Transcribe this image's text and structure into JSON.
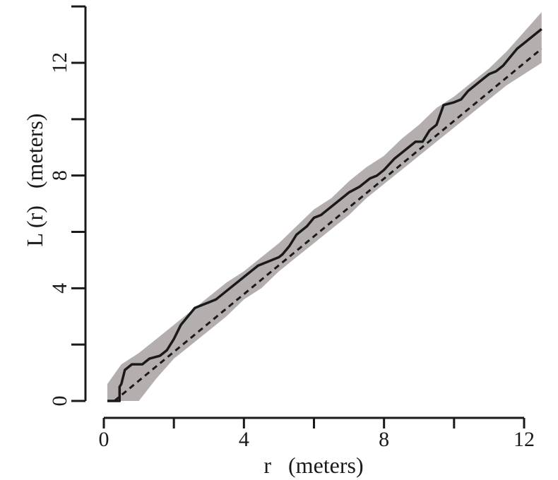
{
  "chart_data": {
    "type": "line",
    "title": "",
    "xlabel": "r   (meters)",
    "ylabel": "L (r)   (meters)",
    "xlim": [
      0,
      12.5
    ],
    "ylim": [
      0,
      14
    ],
    "x_ticks": [
      0,
      2,
      4,
      6,
      8,
      10,
      12
    ],
    "x_tick_labels": [
      "0",
      "",
      "4",
      "",
      "8",
      "",
      "12"
    ],
    "y_ticks": [
      0,
      2,
      4,
      6,
      8,
      10,
      12,
      14
    ],
    "y_tick_labels": [
      "0",
      "",
      "4",
      "",
      "8",
      "",
      "12",
      ""
    ],
    "grid": false,
    "legend": "none",
    "colors": {
      "envelope": "#b4aeae",
      "observed": "#1a1a1a",
      "expected": "#1a1a1a",
      "axis": "#1a1a1a"
    },
    "envelope": {
      "x": [
        0.1,
        0.5,
        1.0,
        1.5,
        2.0,
        2.5,
        3.0,
        3.5,
        4.0,
        4.5,
        5.0,
        5.5,
        6.0,
        6.5,
        7.0,
        7.5,
        8.0,
        8.5,
        9.0,
        9.5,
        10.0,
        10.5,
        11.0,
        11.5,
        12.0,
        12.5
      ],
      "lower": [
        0.0,
        0.0,
        0.0,
        0.8,
        1.5,
        2.0,
        2.5,
        3.0,
        3.6,
        4.0,
        4.6,
        5.1,
        5.6,
        6.1,
        6.6,
        7.2,
        7.7,
        8.2,
        8.7,
        9.2,
        9.7,
        10.2,
        10.7,
        11.2,
        11.6,
        12.0
      ],
      "upper": [
        0.6,
        1.3,
        1.7,
        2.2,
        2.7,
        3.2,
        3.7,
        4.2,
        4.6,
        5.1,
        5.6,
        6.2,
        6.8,
        7.2,
        7.8,
        8.3,
        8.7,
        9.3,
        9.8,
        10.4,
        10.8,
        11.3,
        11.8,
        12.4,
        13.1,
        13.8
      ]
    },
    "series": [
      {
        "name": "",
        "style": "solid",
        "x": [
          0.1,
          0.45,
          0.45,
          0.5,
          0.6,
          0.8,
          1.1,
          1.3,
          1.6,
          1.8,
          2.0,
          2.2,
          2.4,
          2.6,
          2.8,
          3.0,
          3.2,
          3.4,
          3.6,
          3.8,
          4.0,
          4.2,
          4.4,
          4.6,
          4.8,
          5.0,
          5.1,
          5.3,
          5.5,
          5.8,
          6.0,
          6.2,
          6.5,
          6.8,
          7.0,
          7.3,
          7.6,
          7.8,
          8.0,
          8.3,
          8.6,
          8.9,
          9.1,
          9.3,
          9.5,
          9.7,
          10.0,
          10.2,
          10.4,
          10.6,
          10.8,
          11.0,
          11.2,
          11.4,
          11.6,
          11.8,
          12.0,
          12.2,
          12.5
        ],
        "y": [
          0.0,
          0.0,
          0.5,
          0.6,
          1.1,
          1.3,
          1.3,
          1.5,
          1.6,
          1.8,
          2.2,
          2.7,
          3.0,
          3.3,
          3.4,
          3.5,
          3.6,
          3.8,
          4.0,
          4.2,
          4.4,
          4.6,
          4.8,
          4.9,
          5.0,
          5.1,
          5.2,
          5.5,
          5.9,
          6.2,
          6.5,
          6.6,
          6.9,
          7.2,
          7.4,
          7.6,
          7.9,
          8.0,
          8.2,
          8.6,
          8.9,
          9.2,
          9.2,
          9.6,
          9.8,
          10.5,
          10.6,
          10.7,
          11.0,
          11.2,
          11.4,
          11.6,
          11.7,
          11.9,
          12.2,
          12.5,
          12.7,
          12.9,
          13.2
        ]
      },
      {
        "name": "",
        "style": "dashed",
        "x": [
          0.3,
          12.5
        ],
        "y": [
          0.0,
          12.5
        ]
      }
    ]
  }
}
